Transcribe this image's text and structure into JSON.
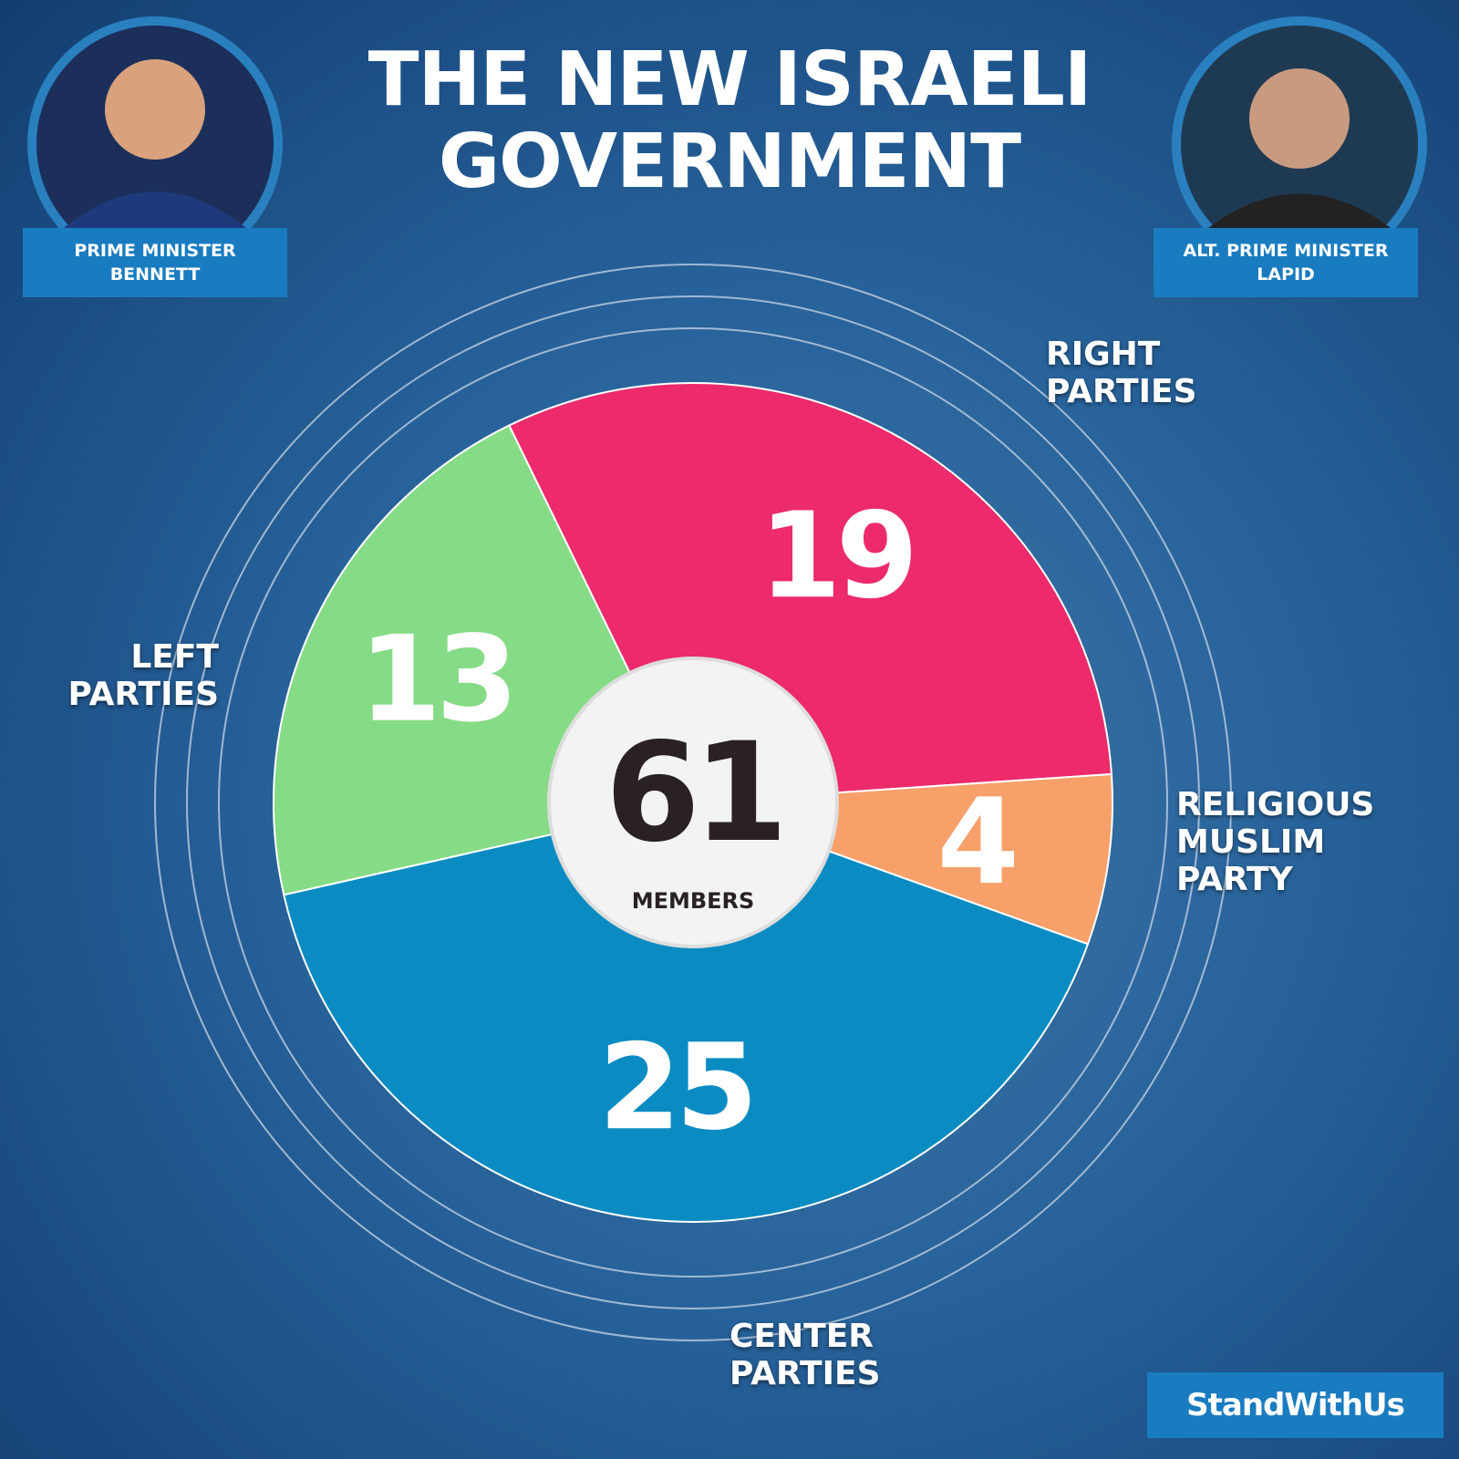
{
  "header": {
    "title_line1": "THE NEW ISRAELI",
    "title_line2": "GOVERNMENT"
  },
  "people": [
    {
      "role": "PRIME MINISTER",
      "name": "BENNETT"
    },
    {
      "role": "ALT. PRIME MINISTER",
      "name": "LAPID"
    }
  ],
  "brand": "StandWithUs",
  "chart_data": {
    "type": "pie",
    "categories": [
      "RIGHT PARTIES",
      "RELIGIOUS MUSLIM PARTY",
      "CENTER PARTIES",
      "LEFT PARTIES"
    ],
    "values": [
      19,
      4,
      25,
      13
    ],
    "colors": [
      "#ec2a6c",
      "#f7a06a",
      "#0a8cc2",
      "#86dc86"
    ],
    "center_value": 61,
    "center_label": "MEMBERS"
  }
}
